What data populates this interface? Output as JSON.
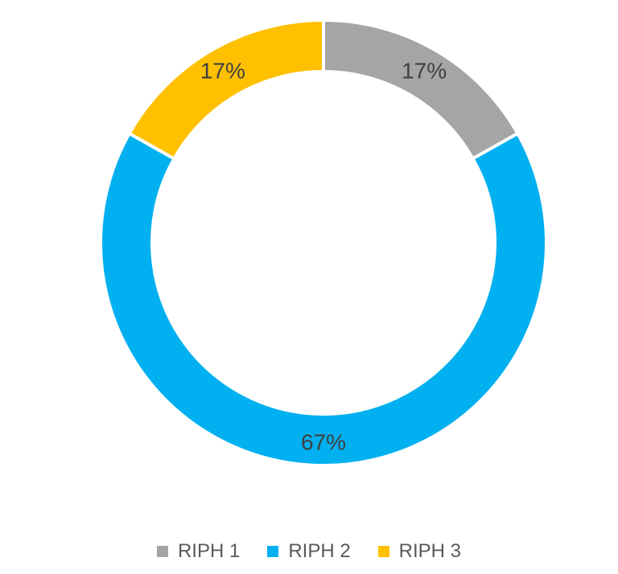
{
  "chart_data": {
    "type": "pie",
    "title": "",
    "categories": [
      "RIPH 1",
      "RIPH 2",
      "RIPH 3"
    ],
    "values": [
      17,
      67,
      17
    ],
    "value_labels": [
      "17%",
      "67%",
      "17%"
    ],
    "colors": [
      "#A5A5A5",
      "#00B0F0",
      "#FFC000"
    ],
    "style": "donut",
    "legend": {
      "position": "bottom",
      "items": [
        {
          "label": "RIPH 1",
          "color": "#A5A5A5"
        },
        {
          "label": "RIPH 2",
          "color": "#00B0F0"
        },
        {
          "label": "RIPH 3",
          "color": "#FFC000"
        }
      ]
    }
  }
}
